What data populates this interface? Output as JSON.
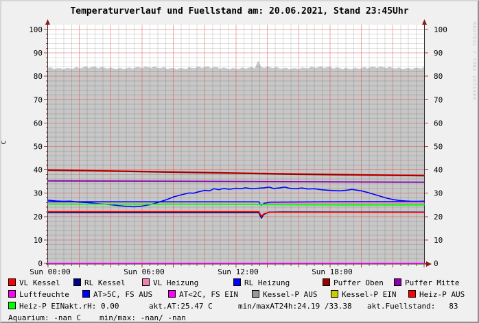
{
  "title": "Temperaturverlauf und Fuellstand am: 20.06.2021, Stand 23:45Uhr",
  "watermark": "RRDTOOL / TOBI OETIKER",
  "chart_data": {
    "type": "line",
    "title": "Temperaturverlauf und Fuellstand am: 20.06.2021, Stand 23:45Uhr",
    "ylabel": "C",
    "ylim": [
      0,
      100
    ],
    "xlim_hours": [
      0,
      24
    ],
    "y_tick_step": 10,
    "x_tick_labels": [
      {
        "hour": 0,
        "label": "Sun 00:00"
      },
      {
        "hour": 6,
        "label": "Sun 06:00"
      },
      {
        "hour": 12,
        "label": "Sun 12:00"
      },
      {
        "hour": 18,
        "label": "Sun 18:00"
      }
    ],
    "grid": {
      "minor_x_hours": 0.5,
      "major_x_hours": 2,
      "minor_y": 2,
      "major_y": 10,
      "on": true
    },
    "axis_color": "#2b2b2b",
    "tick_color": "#c03030",
    "arrow_color": "#8b1a1a",
    "area": {
      "name": "Kessel-P AUS (Fuellstand)",
      "color": "#c7c7c7",
      "base_value": 83.6,
      "jitter": 0.5,
      "spike": {
        "hour": 13.35,
        "value": 86.6
      }
    },
    "series": [
      {
        "name": "VL Kessel",
        "color": "#ff0000",
        "width": 2.0,
        "points": [
          [
            0,
            39.95
          ],
          [
            4,
            39.55
          ],
          [
            8,
            39.1
          ],
          [
            12,
            38.65
          ],
          [
            16,
            38.2
          ],
          [
            20,
            37.85
          ],
          [
            24,
            37.6
          ]
        ]
      },
      {
        "name": "RL Kessel",
        "color": "#000080",
        "width": 1.5,
        "points": [
          [
            0,
            21.65
          ],
          [
            13.45,
            21.6
          ],
          [
            13.55,
            20.2
          ],
          [
            13.62,
            19.3
          ],
          [
            13.75,
            20.8
          ],
          [
            14.1,
            21.9
          ],
          [
            15,
            22.0
          ],
          [
            24,
            21.95
          ]
        ]
      },
      {
        "name": "VL Heizung",
        "color": "#f080b0",
        "width": 1.5,
        "points": [
          [
            0,
            26.2
          ],
          [
            13.45,
            26.15
          ],
          [
            13.6,
            25.0
          ],
          [
            13.9,
            25.6
          ],
          [
            14.5,
            25.75
          ],
          [
            24,
            25.6
          ]
        ]
      },
      {
        "name": "RL Heizung",
        "color": "#0000ff",
        "width": 1.5,
        "points": [
          [
            0,
            26.35
          ],
          [
            13.45,
            26.3
          ],
          [
            13.55,
            25.2
          ],
          [
            13.62,
            24.9
          ],
          [
            13.8,
            25.7
          ],
          [
            14.2,
            26.2
          ],
          [
            18,
            26.35
          ],
          [
            24,
            26.45
          ]
        ]
      },
      {
        "name": "Puffer Oben",
        "color": "#990000",
        "width": 1.8,
        "points": [
          [
            0,
            39.8
          ],
          [
            4,
            39.4
          ],
          [
            8,
            38.95
          ],
          [
            12,
            38.5
          ],
          [
            16,
            38.05
          ],
          [
            20,
            37.7
          ],
          [
            24,
            37.45
          ]
        ]
      },
      {
        "name": "Puffer Mitte",
        "color": "#8800aa",
        "width": 1.8,
        "points": [
          [
            0,
            35.25
          ],
          [
            6,
            35.15
          ],
          [
            12,
            35.0
          ],
          [
            18,
            34.85
          ],
          [
            24,
            34.7
          ]
        ]
      },
      {
        "name": "Luftfeuchte",
        "color": "#ff00ff",
        "width": 1.6,
        "points": [
          [
            0,
            0
          ],
          [
            24,
            0
          ]
        ]
      },
      {
        "name": "AT>5C, FS AUS",
        "color": "#0000ff",
        "width": 1.6,
        "points": [
          [
            0,
            27.0
          ],
          [
            0.5,
            26.7
          ],
          [
            1,
            26.5
          ],
          [
            1.4,
            26.6
          ],
          [
            2,
            26.2
          ],
          [
            2.5,
            26.0
          ],
          [
            3,
            25.7
          ],
          [
            3.5,
            25.4
          ],
          [
            4,
            25.1
          ],
          [
            4.5,
            24.7
          ],
          [
            5,
            24.35
          ],
          [
            5.5,
            24.2
          ],
          [
            6,
            24.5
          ],
          [
            6.5,
            25.1
          ],
          [
            7,
            26.0
          ],
          [
            7.5,
            27.1
          ],
          [
            8,
            28.4
          ],
          [
            8.5,
            29.3
          ],
          [
            9,
            30.1
          ],
          [
            9.3,
            30.0
          ],
          [
            9.6,
            30.6
          ],
          [
            10,
            31.2
          ],
          [
            10.3,
            31.0
          ],
          [
            10.6,
            31.9
          ],
          [
            10.9,
            31.5
          ],
          [
            11.2,
            32.0
          ],
          [
            11.6,
            31.7
          ],
          [
            12,
            32.1
          ],
          [
            12.3,
            31.9
          ],
          [
            12.6,
            32.3
          ],
          [
            13,
            31.9
          ],
          [
            13.4,
            32.1
          ],
          [
            13.8,
            32.3
          ],
          [
            14.1,
            32.6
          ],
          [
            14.4,
            32.0
          ],
          [
            14.8,
            32.3
          ],
          [
            15.1,
            32.6
          ],
          [
            15.4,
            32.1
          ],
          [
            15.8,
            31.9
          ],
          [
            16.2,
            32.2
          ],
          [
            16.6,
            31.8
          ],
          [
            17,
            31.9
          ],
          [
            17.4,
            31.5
          ],
          [
            17.8,
            31.3
          ],
          [
            18.2,
            31.1
          ],
          [
            18.6,
            31.0
          ],
          [
            19,
            31.2
          ],
          [
            19.4,
            31.6
          ],
          [
            19.7,
            31.3
          ],
          [
            20,
            31.0
          ],
          [
            20.4,
            30.3
          ],
          [
            20.8,
            29.5
          ],
          [
            21.2,
            28.7
          ],
          [
            21.6,
            27.9
          ],
          [
            22,
            27.3
          ],
          [
            22.4,
            26.9
          ],
          [
            22.8,
            26.7
          ],
          [
            23.2,
            26.55
          ],
          [
            23.6,
            26.5
          ],
          [
            24,
            26.6
          ]
        ]
      },
      {
        "name": "Heiz-P AUS",
        "color": "#ff0000",
        "width": 1.6,
        "points": [
          [
            0,
            22.15
          ],
          [
            13.45,
            22.1
          ],
          [
            13.55,
            21.0
          ],
          [
            13.62,
            20.3
          ],
          [
            13.8,
            21.3
          ],
          [
            14.2,
            21.85
          ],
          [
            24,
            21.8
          ]
        ]
      },
      {
        "name": "Heiz-P EIN",
        "color": "#00ff00",
        "width": 1.8,
        "points": [
          [
            0,
            25.35
          ],
          [
            6,
            25.3
          ],
          [
            13,
            25.25
          ],
          [
            14,
            25.1
          ],
          [
            19,
            25.0
          ],
          [
            24,
            24.95
          ]
        ]
      }
    ]
  },
  "legend": {
    "rows": [
      [
        {
          "color": "#ff0000",
          "label": "VL Kessel"
        },
        {
          "color": "#000080",
          "label": "RL Kessel"
        },
        {
          "color": "#f080b0",
          "label": "VL Heizung"
        },
        {
          "color": "#0000ff",
          "label": "RL Heizung"
        },
        {
          "color": "#990000",
          "label": "Puffer Oben"
        },
        {
          "color": "#8800aa",
          "label": "Puffer Mitte"
        }
      ],
      [
        {
          "color": "#ff00ff",
          "label": "Luftfeuchte"
        },
        {
          "color": "#0000ff",
          "label": "AT>5C, FS AUS"
        },
        {
          "color": "#ff00ff",
          "label": "AT<2C, FS EIN"
        },
        {
          "color": "#999999",
          "label": "Kessel-P AUS"
        },
        {
          "color": "#cccc00",
          "label": "Kessel-P EIN"
        },
        {
          "color": "#ff0000",
          "label": "Heiz-P AUS"
        }
      ],
      [
        {
          "color": "#00ff00",
          "label": "Heiz-P EIN"
        },
        {
          "label": "akt.rH: 0.00"
        },
        {
          "label": "akt.AT:25.47 C"
        },
        {
          "label": "min/maxAT24h:24.19 /33.38"
        },
        {
          "label": "akt.Fuellstand:   83"
        }
      ],
      [
        {
          "label": "Aquarium: -nan C"
        },
        {
          "label": "min/max: -nan/ -nan"
        }
      ]
    ]
  }
}
